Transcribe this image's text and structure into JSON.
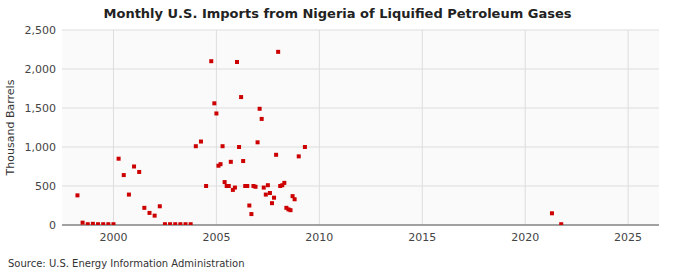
{
  "chart_data": {
    "type": "scatter",
    "title": "Monthly U.S. Imports from Nigeria of Liquified Petroleum Gases",
    "ylabel": "Thousand Barrels",
    "annotations": [
      "Source: U.S. Energy Information Administration"
    ],
    "color": "#cc0000",
    "marker": "square",
    "grid": true,
    "xlim": [
      1997.5,
      2026.5
    ],
    "ylim": [
      0,
      2500
    ],
    "xticks": [
      2000,
      2005,
      2010,
      2015,
      2020,
      2025
    ],
    "yticks": [
      0,
      500,
      {
        "value": 1000,
        "label": "1,000"
      },
      {
        "value": 1500,
        "label": "1,500"
      },
      {
        "value": 2000,
        "label": "2,000"
      },
      {
        "value": 2500,
        "label": "2,500"
      }
    ],
    "x": [
      1998.25,
      1998.5,
      1998.75,
      1999.0,
      1999.25,
      1999.5,
      1999.75,
      2000.0,
      2000.25,
      2000.5,
      2000.75,
      2001.0,
      2001.25,
      2001.5,
      2001.75,
      2002.0,
      2002.25,
      2002.5,
      2002.75,
      2003.0,
      2003.25,
      2003.5,
      2003.75,
      2004.0,
      2004.25,
      2004.5,
      2004.75,
      2004.9,
      2005.0,
      2005.1,
      2005.2,
      2005.3,
      2005.4,
      2005.5,
      2005.6,
      2005.7,
      2005.8,
      2005.9,
      2006.0,
      2006.1,
      2006.2,
      2006.3,
      2006.4,
      2006.5,
      2006.6,
      2006.7,
      2006.8,
      2006.9,
      2007.0,
      2007.1,
      2007.2,
      2007.3,
      2007.4,
      2007.5,
      2007.6,
      2007.7,
      2007.8,
      2007.9,
      2008.0,
      2008.1,
      2008.2,
      2008.3,
      2008.4,
      2008.5,
      2008.6,
      2008.7,
      2008.8,
      2009.0,
      2009.3,
      2021.3,
      2021.75
    ],
    "values": [
      380,
      30,
      10,
      15,
      10,
      10,
      10,
      10,
      850,
      640,
      390,
      750,
      680,
      220,
      155,
      120,
      240,
      10,
      10,
      10,
      10,
      10,
      10,
      1010,
      1070,
      500,
      2100,
      1560,
      1430,
      760,
      780,
      1010,
      550,
      500,
      500,
      810,
      450,
      480,
      2090,
      1000,
      1640,
      820,
      500,
      500,
      250,
      140,
      500,
      490,
      1060,
      1490,
      1360,
      480,
      390,
      510,
      410,
      280,
      350,
      900,
      2220,
      500,
      510,
      540,
      220,
      200,
      190,
      370,
      330,
      880,
      1000,
      150,
      10
    ]
  }
}
